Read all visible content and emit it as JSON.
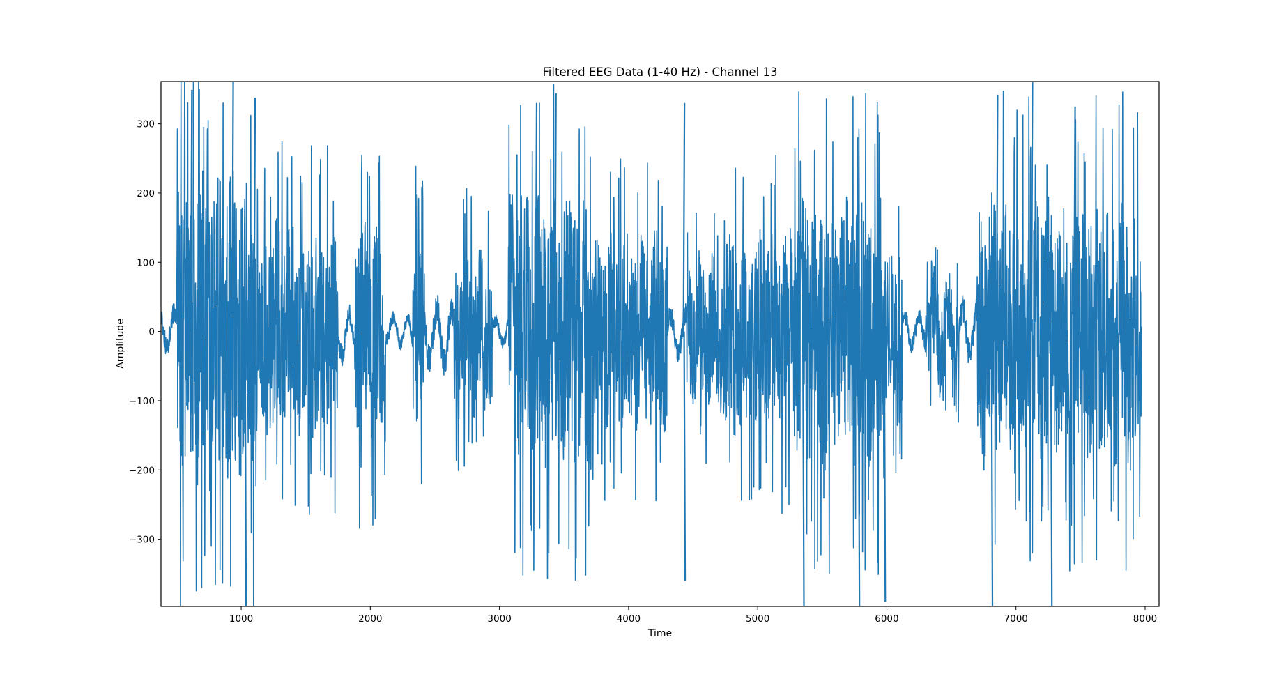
{
  "chart_data": {
    "type": "line",
    "title": "Filtered EEG Data (1-40 Hz) - Channel 13",
    "xlabel": "Time",
    "ylabel": "Amplitude",
    "xlim": [
      379,
      8108
    ],
    "ylim": [
      -397,
      361
    ],
    "xticks": [
      1000,
      2000,
      3000,
      4000,
      5000,
      6000,
      7000,
      8000
    ],
    "xtick_labels": [
      "1000",
      "2000",
      "3000",
      "4000",
      "5000",
      "6000",
      "7000",
      "8000"
    ],
    "yticks": [
      -300,
      -200,
      -100,
      0,
      100,
      200,
      300
    ],
    "ytick_labels": [
      "−300",
      "−200",
      "−100",
      "0",
      "100",
      "200",
      "300"
    ],
    "grid": false,
    "legend": null,
    "series": [
      {
        "name": "Channel 13",
        "color": "#1f77b4",
        "x_start": 380,
        "x_end": 7970,
        "description": "Dense band-pass filtered EEG trace; amplitude envelope by segment (approx peak |amplitude|)",
        "envelope": [
          {
            "x0": 380,
            "x1": 500,
            "amp": 60
          },
          {
            "x0": 500,
            "x1": 1100,
            "amp": 380
          },
          {
            "x0": 1100,
            "x1": 1750,
            "amp": 250
          },
          {
            "x0": 1750,
            "x1": 1880,
            "amp": 60
          },
          {
            "x0": 1880,
            "x1": 2120,
            "amp": 260
          },
          {
            "x0": 2120,
            "x1": 2330,
            "amp": 40
          },
          {
            "x0": 2330,
            "x1": 2420,
            "amp": 220
          },
          {
            "x0": 2420,
            "x1": 2650,
            "amp": 90
          },
          {
            "x0": 2650,
            "x1": 2950,
            "amp": 190
          },
          {
            "x0": 2950,
            "x1": 3070,
            "amp": 40
          },
          {
            "x0": 3070,
            "x1": 3700,
            "amp": 330
          },
          {
            "x0": 3700,
            "x1": 4300,
            "amp": 230
          },
          {
            "x0": 4300,
            "x1": 4450,
            "amp": 60
          },
          {
            "x0": 4450,
            "x1": 4750,
            "amp": 180
          },
          {
            "x0": 4750,
            "x1": 5300,
            "amp": 250
          },
          {
            "x0": 5300,
            "x1": 5950,
            "amp": 320
          },
          {
            "x0": 5950,
            "x1": 6120,
            "amp": 220
          },
          {
            "x0": 6120,
            "x1": 6300,
            "amp": 50
          },
          {
            "x0": 6300,
            "x1": 6560,
            "amp": 120
          },
          {
            "x0": 6560,
            "x1": 6700,
            "amp": 80
          },
          {
            "x0": 6700,
            "x1": 7970,
            "amp": 320
          }
        ],
        "notable_peaks": [
          {
            "x": 610,
            "y": 349
          },
          {
            "x": 930,
            "y": 361
          },
          {
            "x": 1030,
            "y": -397
          },
          {
            "x": 1100,
            "y": 338
          },
          {
            "x": 3280,
            "y": 330
          },
          {
            "x": 3430,
            "y": 344
          },
          {
            "x": 4425,
            "y": 330
          },
          {
            "x": 4430,
            "y": -360
          },
          {
            "x": 5350,
            "y": -397
          },
          {
            "x": 5780,
            "y": -397
          },
          {
            "x": 5980,
            "y": -390
          },
          {
            "x": 6810,
            "y": -397
          },
          {
            "x": 6850,
            "y": 342
          },
          {
            "x": 7120,
            "y": 361
          },
          {
            "x": 7270,
            "y": -397
          },
          {
            "x": 7450,
            "y": 325
          }
        ]
      }
    ]
  }
}
